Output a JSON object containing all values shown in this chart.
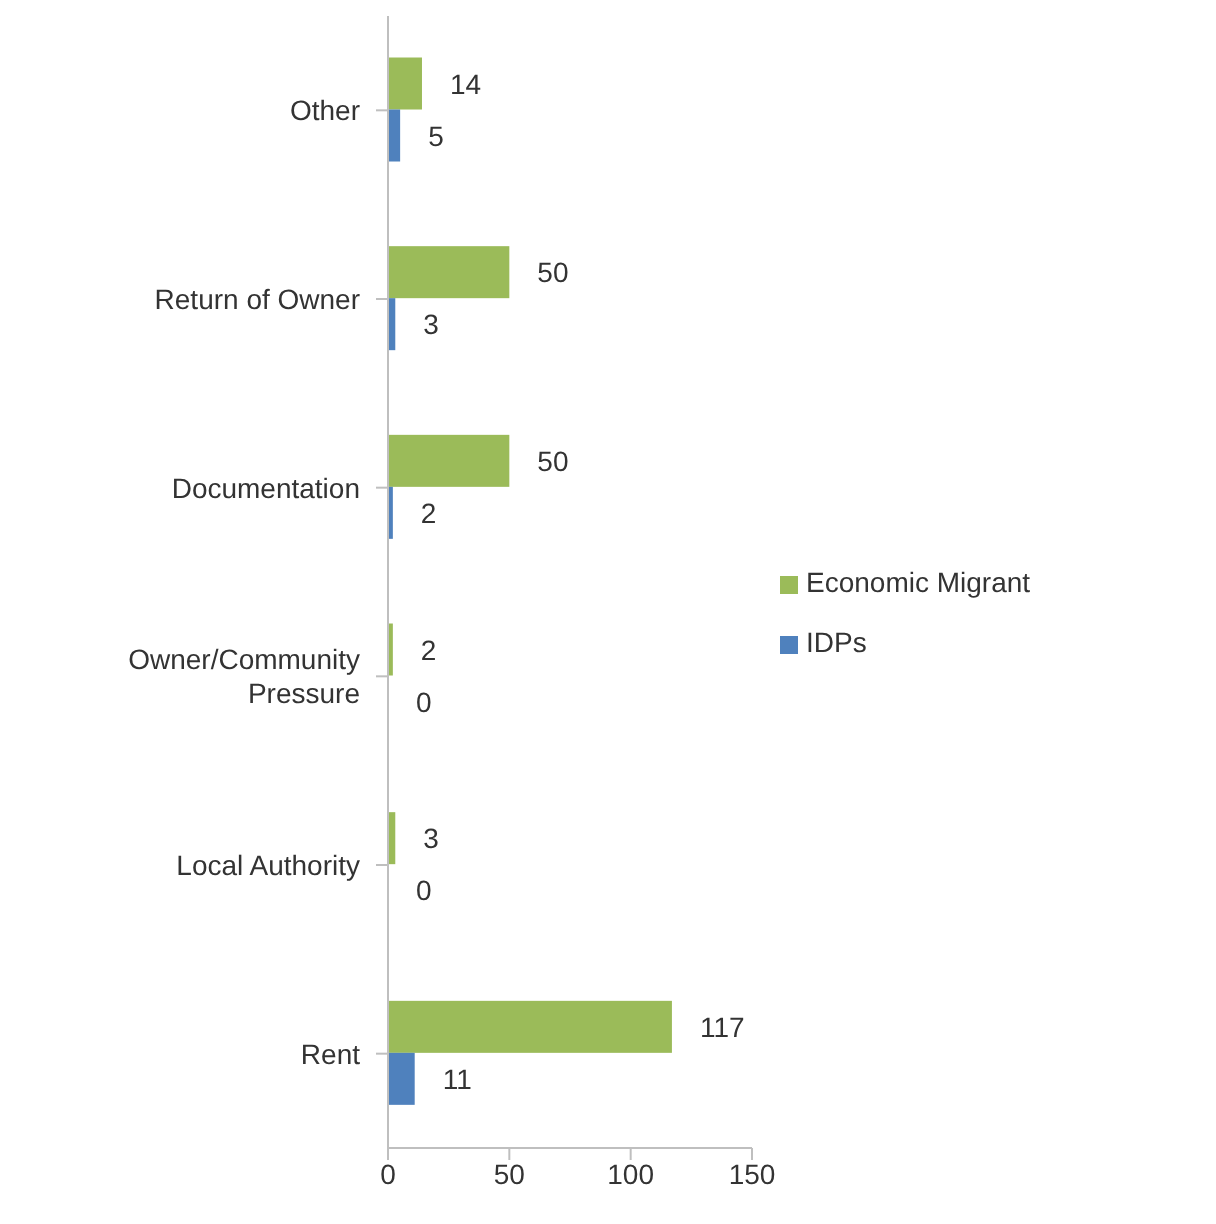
{
  "chart_data": {
    "type": "bar",
    "orientation": "horizontal",
    "categories": [
      "Other",
      "Return of Owner",
      "Documentation",
      "Owner/Community Pressure",
      "Local Authority",
      "Rent"
    ],
    "series": [
      {
        "name": "Economic Migrant",
        "color": "#9bbb59",
        "values": [
          14,
          50,
          50,
          2,
          3,
          117
        ]
      },
      {
        "name": "IDPs",
        "color": "#4f81bd",
        "values": [
          5,
          3,
          2,
          0,
          0,
          11
        ]
      }
    ],
    "xlim": [
      0,
      150
    ],
    "xticks": [
      0,
      50,
      100,
      150
    ],
    "data_labels": true,
    "grid": false,
    "legend": "right"
  }
}
